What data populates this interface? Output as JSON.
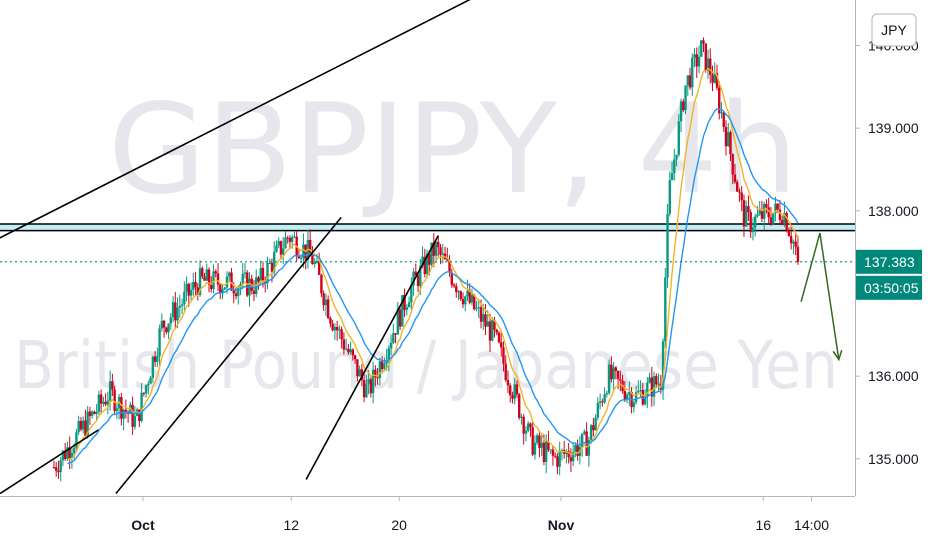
{
  "chart_data": {
    "type": "candlestick",
    "symbol": "GBPJPY, 4h",
    "description": "British Pound / Japanese Yen",
    "currency_badge": "JPY",
    "price_axis": {
      "ticks": [
        {
          "value": 140.0,
          "label": "140.000"
        },
        {
          "value": 139.0,
          "label": "139.000"
        },
        {
          "value": 138.0,
          "label": "138.000"
        },
        {
          "value": 136.0,
          "label": "136.000"
        },
        {
          "value": 135.0,
          "label": "135.000"
        }
      ],
      "ylim": [
        134.55,
        140.55
      ]
    },
    "time_axis": {
      "ticks": [
        {
          "label": "Oct",
          "bold": true,
          "day": 1.0
        },
        {
          "label": "12",
          "bold": false,
          "day": 12.0
        },
        {
          "label": "20",
          "bold": false,
          "day": 20.0
        },
        {
          "label": "Nov",
          "bold": true,
          "day": 32.0
        },
        {
          "label": "16",
          "bold": false,
          "day": 47.0
        },
        {
          "label": "14:00",
          "bold": false,
          "day": 50.58
        }
      ],
      "xlim": [
        -9.6,
        53.8
      ]
    },
    "last_price": {
      "value": 137.383,
      "label": "137.383",
      "color": "#00897b"
    },
    "countdown": "03:50:05",
    "resistance_zone": {
      "top": 137.84,
      "bottom": 137.76,
      "fill": "#b2ebf2",
      "line": "#000000"
    },
    "key_points": [
      {
        "day": -5.6,
        "price": 134.9
      },
      {
        "day": -1.5,
        "price": 135.8
      },
      {
        "day": 0.5,
        "price": 135.45
      },
      {
        "day": 2.4,
        "price": 136.6
      },
      {
        "day": 5.2,
        "price": 137.15
      },
      {
        "day": 9.5,
        "price": 137.1
      },
      {
        "day": 11.8,
        "price": 137.7
      },
      {
        "day": 13.5,
        "price": 137.45
      },
      {
        "day": 15.0,
        "price": 136.7
      },
      {
        "day": 17.7,
        "price": 135.8
      },
      {
        "day": 20.8,
        "price": 137.05
      },
      {
        "day": 22.7,
        "price": 137.55
      },
      {
        "day": 24.5,
        "price": 137.05
      },
      {
        "day": 27.0,
        "price": 136.5
      },
      {
        "day": 29.8,
        "price": 135.2
      },
      {
        "day": 31.5,
        "price": 135.0
      },
      {
        "day": 34.0,
        "price": 135.2
      },
      {
        "day": 35.5,
        "price": 136.0
      },
      {
        "day": 37.5,
        "price": 135.75
      },
      {
        "day": 39.4,
        "price": 135.95
      },
      {
        "day": 40.0,
        "price": 138.2
      },
      {
        "day": 41.2,
        "price": 139.5
      },
      {
        "day": 42.4,
        "price": 139.95
      },
      {
        "day": 43.3,
        "price": 139.6
      },
      {
        "day": 44.5,
        "price": 138.75
      },
      {
        "day": 45.5,
        "price": 137.95
      },
      {
        "day": 46.0,
        "price": 137.85
      },
      {
        "day": 47.0,
        "price": 137.95
      },
      {
        "day": 48.5,
        "price": 138.0
      },
      {
        "day": 49.7,
        "price": 137.38
      }
    ],
    "trend_lines": [
      {
        "from": [
          -10.0,
          137.64
        ],
        "to": [
          28.2,
          140.8
        ],
        "color": "#000000"
      },
      {
        "from": [
          -9.6,
          134.58
        ],
        "to": [
          -2.3,
          135.35
        ],
        "color": "#000000"
      },
      {
        "from": [
          -1.0,
          134.58
        ],
        "to": [
          15.7,
          137.92
        ],
        "color": "#000000"
      },
      {
        "from": [
          13.1,
          134.75
        ],
        "to": [
          22.9,
          137.7
        ],
        "color": "#000000"
      }
    ],
    "projection": {
      "points": [
        [
          49.8,
          136.9
        ],
        [
          51.2,
          137.73
        ],
        [
          52.6,
          136.2
        ]
      ],
      "color": "#33691e"
    }
  }
}
